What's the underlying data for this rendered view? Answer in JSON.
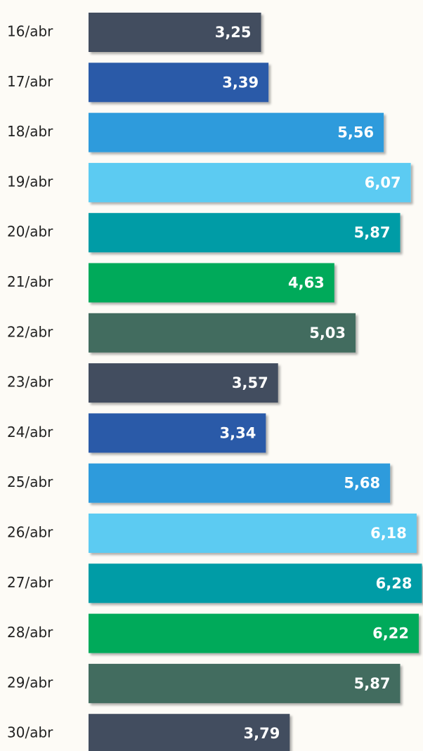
{
  "chart_data": {
    "type": "barh",
    "categories": [
      "16/abr",
      "17/abr",
      "18/abr",
      "19/abr",
      "20/abr",
      "21/abr",
      "22/abr",
      "23/abr",
      "24/abr",
      "25/abr",
      "26/abr",
      "27/abr",
      "28/abr",
      "29/abr",
      "30/abr"
    ],
    "values": [
      3.25,
      3.39,
      5.56,
      6.07,
      5.87,
      4.63,
      5.03,
      3.57,
      3.34,
      5.68,
      6.18,
      6.28,
      6.22,
      5.87,
      3.79
    ],
    "value_labels": [
      "3,25",
      "3,39",
      "5,56",
      "6,07",
      "5,87",
      "4,63",
      "5,03",
      "3,57",
      "3,34",
      "5,68",
      "6,18",
      "6,28",
      "6,22",
      "5,87",
      "3,79"
    ],
    "colors": [
      "#434e5e",
      "#2a5aa8",
      "#2e9bdc",
      "#5bcbf2",
      "#009ca6",
      "#00aa5a",
      "#436c5e"
    ],
    "xlim": [
      0,
      6.3
    ]
  }
}
